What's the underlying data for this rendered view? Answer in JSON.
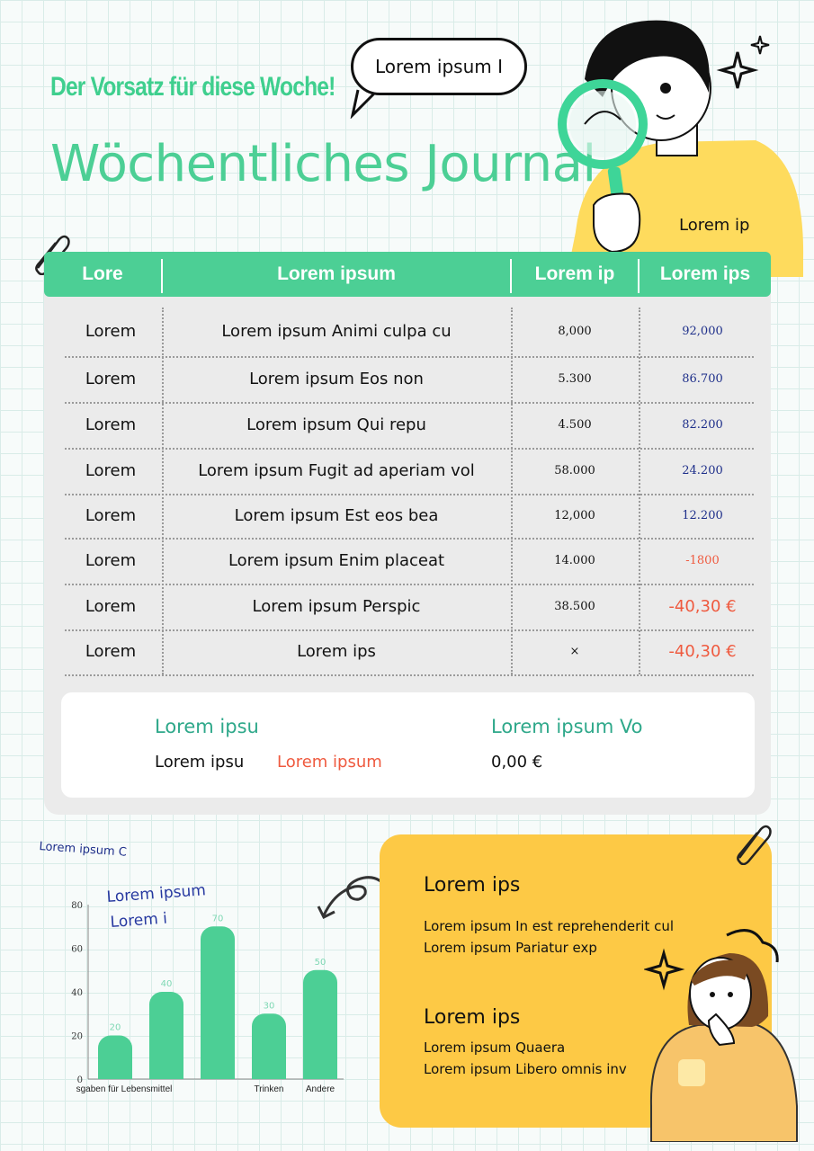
{
  "header": {
    "subtitle": "Der Vorsatz für diese Woche!",
    "title": "Wöchentliches Journal",
    "bubble": "Lorem ipsum I",
    "side_note": "Lorem ip"
  },
  "table": {
    "headers": [
      "Lore",
      "Lorem ipsum",
      "Lorem ip",
      "Lorem ips"
    ],
    "rows": [
      {
        "name": "Lorem",
        "desc": "Lorem ipsum Animi culpa cu",
        "amount": "8,000",
        "value": "92,000",
        "value_color": "blue"
      },
      {
        "name": "Lorem",
        "desc": "Lorem ipsum Eos non",
        "amount": "5.300",
        "value": "86.700",
        "value_color": "blue"
      },
      {
        "name": "Lorem",
        "desc": "Lorem ipsum Qui repu",
        "amount": "4.500",
        "value": "82.200",
        "value_color": "blue"
      },
      {
        "name": "Lorem",
        "desc": "Lorem ipsum Fugit ad aperiam vol",
        "amount": "58.000",
        "value": "24.200",
        "value_color": "blue"
      },
      {
        "name": "Lorem",
        "desc": "Lorem ipsum Est eos bea",
        "amount": "12,000",
        "value": "12.200",
        "value_color": "blue"
      },
      {
        "name": "Lorem",
        "desc": "Lorem ipsum Enim placeat",
        "amount": "14.000",
        "value": "-1800",
        "value_color": "red-small"
      },
      {
        "name": "Lorem",
        "desc": "Lorem ipsum Perspic",
        "amount": "38.500",
        "value": "-40,30 €",
        "value_color": "red"
      },
      {
        "name": "Lorem",
        "desc": "Lorem ips",
        "amount": "×",
        "value": "-40,30 €",
        "value_color": "red"
      }
    ]
  },
  "summary": {
    "left_heading": "Lorem ipsu",
    "left_text": "Lorem ipsu",
    "left_red": "Lorem ipsum",
    "right_heading": "Lorem ipsum Vo",
    "right_value": "0,00 €"
  },
  "chart_note": "Lorem ipsum C",
  "chart_labels": [
    "Lorem ipsum",
    "Lorem i"
  ],
  "chart_data": {
    "type": "bar",
    "categories": [
      "sgaben für Lebensmittel",
      "",
      "",
      "Trinken",
      "Andere"
    ],
    "values": [
      20,
      40,
      70,
      30,
      50
    ],
    "ylim": [
      0,
      80
    ],
    "yticks": [
      0,
      20,
      40,
      60,
      80
    ],
    "color": "#4ccf95",
    "label_color": "#7fd8b4"
  },
  "panel": {
    "heading1": "Lorem ips",
    "line1": "Lorem ipsum In est reprehenderit cul",
    "line2": "Lorem ipsum Pariatur exp",
    "heading2": "Lorem ips",
    "line3": "Lorem ipsum Quaera",
    "line4": "Lorem ipsum Libero omnis inv"
  },
  "colors": {
    "accent": "#4ccf95",
    "title": "#4ccf95",
    "panel": "#fdc945",
    "blue": "#1e2f8a",
    "red": "#ef5a3f"
  }
}
